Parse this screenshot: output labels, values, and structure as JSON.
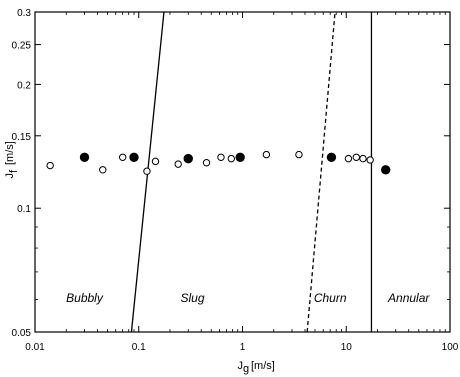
{
  "chart_data": {
    "type": "scatter",
    "title": "",
    "xlabel": "J_g [m/s]",
    "ylabel": "J_f [m/s]",
    "xscale": "log",
    "yscale": "log",
    "xlim": [
      0.01,
      100
    ],
    "ylim": [
      0.05,
      0.3
    ],
    "grid": false,
    "x_ticks": [
      {
        "value": 0.01,
        "label": "0.01"
      },
      {
        "value": 0.1,
        "label": "0.1"
      },
      {
        "value": 1,
        "label": "1"
      },
      {
        "value": 10,
        "label": "10"
      },
      {
        "value": 100,
        "label": "100"
      }
    ],
    "y_ticks": [
      {
        "value": 0.05,
        "label": "0.05"
      },
      {
        "value": 0.1,
        "label": "0.1"
      },
      {
        "value": 0.15,
        "label": "0.15"
      },
      {
        "value": 0.2,
        "label": "0.2"
      },
      {
        "value": 0.25,
        "label": "0.25"
      },
      {
        "value": 0.3,
        "label": "0.3"
      }
    ],
    "series": [
      {
        "marker": "open-circle",
        "points": [
          [
            0.014,
            0.127
          ],
          [
            0.045,
            0.124
          ],
          [
            0.07,
            0.133
          ],
          [
            0.12,
            0.123
          ],
          [
            0.145,
            0.13
          ],
          [
            0.24,
            0.128
          ],
          [
            0.45,
            0.129
          ],
          [
            0.62,
            0.133
          ],
          [
            0.78,
            0.132
          ],
          [
            1.7,
            0.135
          ],
          [
            3.5,
            0.135
          ],
          [
            10.5,
            0.132
          ],
          [
            12.5,
            0.133
          ],
          [
            14.5,
            0.132
          ],
          [
            17.0,
            0.131
          ]
        ]
      },
      {
        "marker": "filled-circle",
        "points": [
          [
            0.03,
            0.133
          ],
          [
            0.09,
            0.133
          ],
          [
            0.3,
            0.132
          ],
          [
            0.95,
            0.133
          ],
          [
            7.2,
            0.133
          ],
          [
            24.0,
            0.124
          ]
        ]
      }
    ],
    "boundaries": [
      {
        "style": "solid",
        "points": [
          [
            0.085,
            0.05
          ],
          [
            0.175,
            0.3
          ]
        ]
      },
      {
        "style": "dashed",
        "points": [
          [
            4.2,
            0.05
          ],
          [
            7.8,
            0.3
          ]
        ]
      },
      {
        "style": "solid",
        "points": [
          [
            17.5,
            0.05
          ],
          [
            17.5,
            0.3
          ]
        ]
      }
    ],
    "regions": [
      {
        "label": "Bubbly",
        "x": 0.03,
        "y": 0.0605
      },
      {
        "label": "Slug",
        "x": 0.33,
        "y": 0.0605
      },
      {
        "label": "Churn",
        "x": 7.0,
        "y": 0.0605
      },
      {
        "label": "Annular",
        "x": 40.0,
        "y": 0.0605
      }
    ]
  }
}
